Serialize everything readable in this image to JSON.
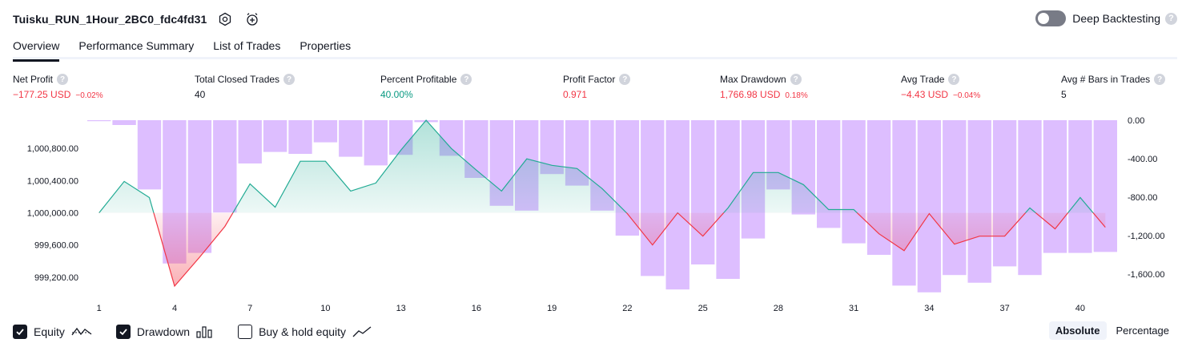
{
  "header": {
    "strategy_name": "Tuisku_RUN_1Hour_2BC0_fdc4fd31",
    "deep_backtesting_label": "Deep Backtesting",
    "help_glyph": "?",
    "icons": [
      "settings-icon",
      "alarm-add-icon"
    ]
  },
  "tabs": [
    {
      "label": "Overview",
      "active": true
    },
    {
      "label": "Performance Summary",
      "active": false
    },
    {
      "label": "List of Trades",
      "active": false
    },
    {
      "label": "Properties",
      "active": false
    }
  ],
  "metrics": [
    {
      "label": "Net Profit",
      "value": "−177.25 USD",
      "pct": "−0.02%",
      "color": "#f23645"
    },
    {
      "label": "Total Closed Trades",
      "value": "40",
      "pct": "",
      "color": "#131722"
    },
    {
      "label": "Percent Profitable",
      "value": "40.00%",
      "pct": "",
      "color": "#089981"
    },
    {
      "label": "Profit Factor",
      "value": "0.971",
      "pct": "",
      "color": "#f23645"
    },
    {
      "label": "Max Drawdown",
      "value": "1,766.98 USD",
      "pct": "0.18%",
      "color": "#f23645"
    },
    {
      "label": "Avg Trade",
      "value": "−4.43 USD",
      "pct": "−0.04%",
      "color": "#f23645"
    },
    {
      "label": "Avg # Bars in Trades",
      "value": "5",
      "pct": "",
      "color": "#131722"
    }
  ],
  "chart_data": {
    "type": "line",
    "x_ticks": [
      "1",
      "4",
      "7",
      "10",
      "13",
      "16",
      "19",
      "22",
      "25",
      "28",
      "31",
      "34",
      "37",
      "40"
    ],
    "left_axis": {
      "ticks": [
        "1,000,800.00",
        "1,000,400.00",
        "1,000,000.00",
        "999,600.00",
        "999,200.00"
      ],
      "tick_values": [
        1000800,
        1000400,
        1000000,
        999600,
        999200
      ],
      "range": [
        999060,
        1001150
      ]
    },
    "right_axis": {
      "ticks": [
        "0.00",
        "-400.00",
        "-800.00",
        "-1,200.00",
        "-1,600.00"
      ],
      "tick_values": [
        0,
        -400,
        -800,
        -1200,
        -1600
      ],
      "range": [
        -2000,
        0
      ]
    },
    "baseline": 1000000,
    "series": [
      {
        "name": "Equity",
        "color_positive": "#22ab94",
        "color_negative": "#f23645",
        "x": [
          1,
          2,
          3,
          4,
          5,
          6,
          7,
          8,
          9,
          10,
          11,
          12,
          13,
          14,
          15,
          16,
          17,
          18,
          19,
          20,
          21,
          22,
          23,
          24,
          25,
          26,
          27,
          28,
          29,
          30,
          31,
          32,
          33,
          34,
          35,
          36,
          37,
          38,
          39,
          40,
          41
        ],
        "values": [
          1000000,
          1000390,
          1000190,
          999090,
          999450,
          999830,
          1000360,
          1000070,
          1000640,
          1000640,
          1000270,
          1000370,
          1000780,
          1001150,
          1000800,
          1000530,
          1000270,
          1000670,
          1000590,
          1000550,
          1000300,
          999990,
          999600,
          1000000,
          999710,
          1000060,
          1000500,
          1000500,
          1000350,
          1000040,
          1000040,
          999740,
          999530,
          999990,
          999610,
          999710,
          999710,
          1000060,
          999800,
          1000190,
          999820
        ]
      },
      {
        "name": "Drawdown",
        "color": "#d1a8ff",
        "values": [
          -10,
          -50,
          -720,
          -1490,
          -1380,
          -960,
          -450,
          -330,
          -350,
          -230,
          -380,
          -470,
          -360,
          -20,
          -370,
          -600,
          -890,
          -940,
          -560,
          -680,
          -940,
          -1200,
          -1620,
          -1760,
          -1500,
          -1650,
          -1230,
          -720,
          -980,
          -1120,
          -1280,
          -1400,
          -1720,
          -1790,
          -1610,
          -1690,
          -1520,
          -1610,
          -1380,
          -1380,
          -1370
        ]
      }
    ]
  },
  "legend": {
    "items": [
      {
        "label": "Equity",
        "checked": true,
        "icon": "equity-line-icon"
      },
      {
        "label": "Drawdown",
        "checked": true,
        "icon": "drawdown-bars-icon"
      },
      {
        "label": "Buy & hold equity",
        "checked": false,
        "icon": "buy-hold-line-icon"
      }
    ],
    "modes": [
      {
        "label": "Absolute",
        "active": true
      },
      {
        "label": "Percentage",
        "active": false
      }
    ]
  }
}
